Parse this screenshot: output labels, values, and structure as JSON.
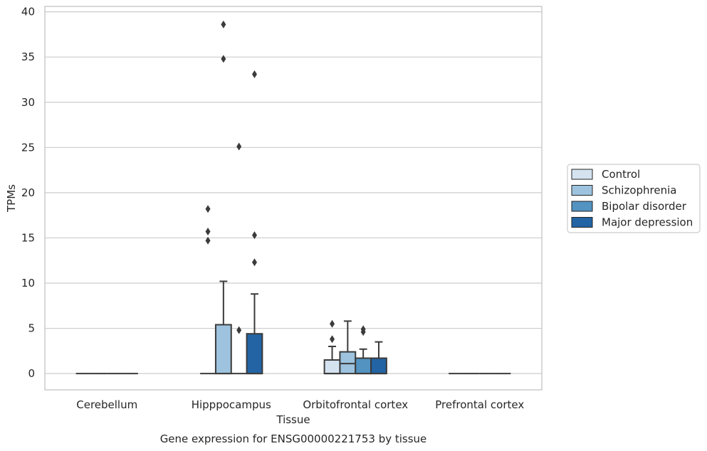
{
  "chart_data": {
    "type": "box",
    "title": "",
    "caption": "Gene expression for ENSG00000221753 by tissue",
    "xlabel": "Tissue",
    "ylabel": "TPMs",
    "ylim": [
      -1.8,
      40.6
    ],
    "yticks": [
      0,
      5,
      10,
      15,
      20,
      25,
      30,
      35,
      40
    ],
    "grid": "horizontal",
    "legend_position": "right",
    "categories": [
      "Cerebellum",
      "Hipppocampus",
      "Orbitofrontal cortex",
      "Prefrontal cortex"
    ],
    "series": [
      {
        "name": "Control",
        "color": "#d5e3f1",
        "boxes": [
          {
            "q1": 0,
            "median": 0,
            "q3": 0,
            "whisker_low": 0,
            "whisker_high": 0,
            "outliers": []
          },
          {
            "q1": 0,
            "median": 0,
            "q3": 0,
            "whisker_low": 0,
            "whisker_high": 0,
            "outliers": [
              14.7,
              15.7,
              18.2
            ]
          },
          {
            "q1": 0,
            "median": 0,
            "q3": 1.5,
            "whisker_low": 0,
            "whisker_high": 3.0,
            "outliers": [
              3.8,
              5.5
            ]
          },
          {
            "q1": 0,
            "median": 0,
            "q3": 0,
            "whisker_low": 0,
            "whisker_high": 0,
            "outliers": []
          }
        ]
      },
      {
        "name": "Schizophrenia",
        "color": "#9dc3de",
        "boxes": [
          {
            "q1": 0,
            "median": 0,
            "q3": 0,
            "whisker_low": 0,
            "whisker_high": 0,
            "outliers": []
          },
          {
            "q1": 0,
            "median": 0,
            "q3": 5.4,
            "whisker_low": 0,
            "whisker_high": 10.2,
            "outliers": [
              34.8,
              38.6
            ]
          },
          {
            "q1": 0,
            "median": 1.1,
            "q3": 2.4,
            "whisker_low": 0,
            "whisker_high": 5.8,
            "outliers": []
          },
          {
            "q1": 0,
            "median": 0,
            "q3": 0,
            "whisker_low": 0,
            "whisker_high": 0,
            "outliers": []
          }
        ]
      },
      {
        "name": "Bipolar disorder",
        "color": "#5293c2",
        "boxes": [
          {
            "q1": 0,
            "median": 0,
            "q3": 0,
            "whisker_low": 0,
            "whisker_high": 0,
            "outliers": []
          },
          {
            "q1": 0,
            "median": 0,
            "q3": 0,
            "whisker_low": 0,
            "whisker_high": 0,
            "outliers": [
              4.8,
              25.1
            ]
          },
          {
            "q1": 0,
            "median": 0,
            "q3": 1.7,
            "whisker_low": 0,
            "whisker_high": 2.7,
            "outliers": [
              4.6,
              4.9
            ]
          },
          {
            "q1": 0,
            "median": 0,
            "q3": 0,
            "whisker_low": 0,
            "whisker_high": 0,
            "outliers": []
          }
        ]
      },
      {
        "name": "Major depression",
        "color": "#2264a4",
        "boxes": [
          {
            "q1": 0,
            "median": 0,
            "q3": 0,
            "whisker_low": 0,
            "whisker_high": 0,
            "outliers": []
          },
          {
            "q1": 0,
            "median": 0,
            "q3": 4.4,
            "whisker_low": 0,
            "whisker_high": 8.8,
            "outliers": [
              12.3,
              15.3,
              33.1
            ]
          },
          {
            "q1": 0,
            "median": 0,
            "q3": 1.7,
            "whisker_low": 0,
            "whisker_high": 3.5,
            "outliers": []
          },
          {
            "q1": 0,
            "median": 0,
            "q3": 0,
            "whisker_low": 0,
            "whisker_high": 0,
            "outliers": []
          }
        ]
      }
    ],
    "colors": {
      "axes": "#cccccc",
      "grid": "#cccccc",
      "box_edge": "#3b3b3b",
      "text": "#262626"
    }
  }
}
